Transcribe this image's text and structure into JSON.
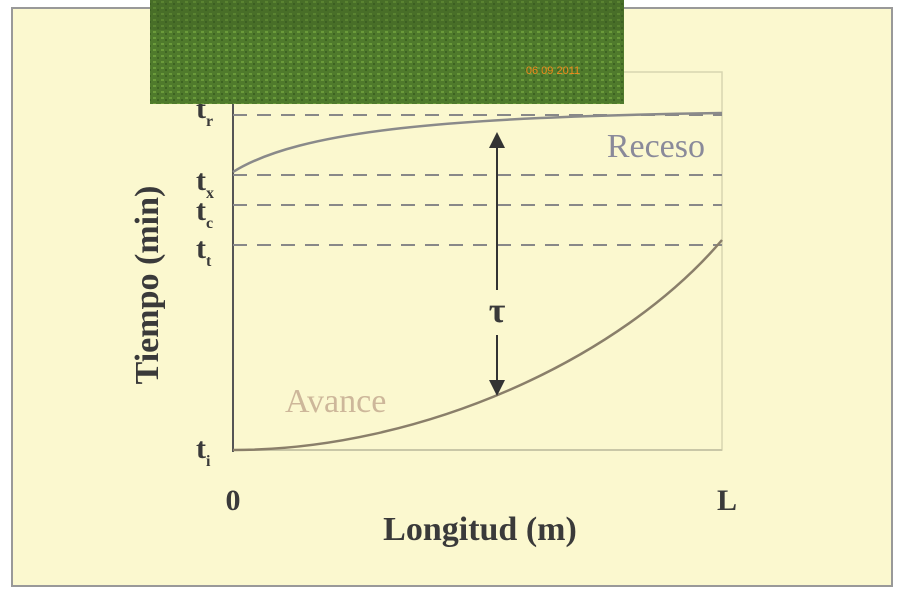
{
  "photo": {
    "date": "06 09 2011"
  },
  "diagram": {
    "y_axis_label": "Tiempo (min)",
    "x_axis_label": "Longitud (m)",
    "x_ticks": [
      "0",
      "L"
    ],
    "y_ticks": [
      {
        "main": "t",
        "sub": "r"
      },
      {
        "main": "t",
        "sub": "x"
      },
      {
        "main": "t",
        "sub": "c"
      },
      {
        "main": "t",
        "sub": "t"
      },
      {
        "main": "t",
        "sub": "i"
      }
    ],
    "curves": [
      {
        "label": "Receso"
      },
      {
        "label": "Avance"
      }
    ],
    "interval_label": "τ"
  }
}
